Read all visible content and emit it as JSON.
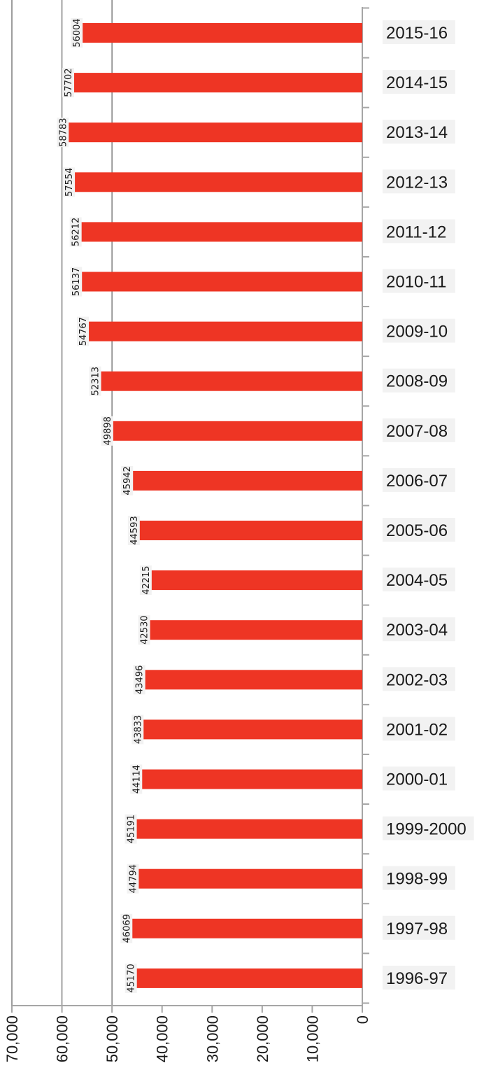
{
  "chart_data": {
    "type": "bar",
    "orientation": "horizontal",
    "title": "",
    "xlabel": "",
    "ylabel": "",
    "categories": [
      "2015-16",
      "2014-15",
      "2013-14",
      "2012-13",
      "2011-12",
      "2010-11",
      "2009-10",
      "2008-09",
      "2007-08",
      "2006-07",
      "2005-06",
      "2004-05",
      "2003-04",
      "2002-03",
      "2001-02",
      "2000-01",
      "1999-2000",
      "1998-99",
      "1997-98",
      "1996-97"
    ],
    "values": [
      56004,
      57702,
      58783,
      57554,
      56212,
      56137,
      54767,
      52313,
      49898,
      45942,
      44593,
      42215,
      42530,
      43496,
      43833,
      44114,
      45191,
      44794,
      46069,
      45170
    ],
    "value_labels": [
      "56004",
      "57702",
      "58783",
      "57554",
      "56212",
      "56137",
      "54767",
      "52313",
      "49898",
      "45942",
      "44593",
      "42215",
      "42530",
      "43496",
      "43833",
      "44114",
      "45191",
      "44794",
      "46069",
      "45170"
    ],
    "axis_ticks": [
      "0",
      "10,000",
      "20,000",
      "30,000",
      "40,000",
      "50,000",
      "60,000",
      "70,000"
    ],
    "xlim": [
      0,
      70000
    ],
    "gridlines": [
      50000,
      60000
    ],
    "bar_color": "#ee3524",
    "grid_color": "#7f7f7f",
    "axis_color": "#a6a6a6",
    "legend": "none"
  }
}
